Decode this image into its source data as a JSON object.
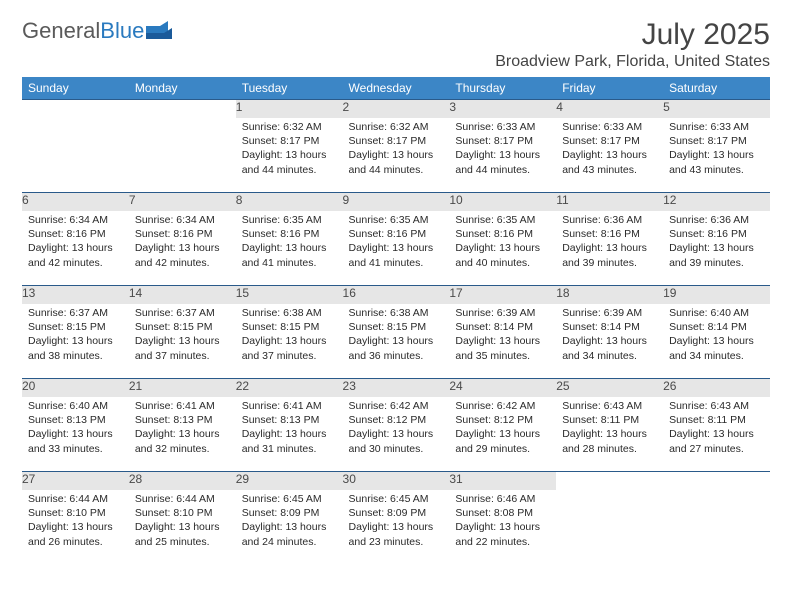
{
  "logo": {
    "text_gray": "General",
    "text_blue": "Blue"
  },
  "title": "July 2025",
  "location": "Broadview Park, Florida, United States",
  "columns": [
    "Sunday",
    "Monday",
    "Tuesday",
    "Wednesday",
    "Thursday",
    "Friday",
    "Saturday"
  ],
  "colors": {
    "header_bg": "#3c86c6",
    "header_text": "#ffffff",
    "daynum_bg": "#e6e6e6",
    "border_top": "#2a5a8a",
    "title_color": "#444444",
    "logo_gray": "#5a5a5a",
    "logo_blue": "#2a7abf"
  },
  "weeks": [
    [
      null,
      null,
      {
        "n": "1",
        "sr": "6:32 AM",
        "ss": "8:17 PM",
        "dl": "13 hours and 44 minutes."
      },
      {
        "n": "2",
        "sr": "6:32 AM",
        "ss": "8:17 PM",
        "dl": "13 hours and 44 minutes."
      },
      {
        "n": "3",
        "sr": "6:33 AM",
        "ss": "8:17 PM",
        "dl": "13 hours and 44 minutes."
      },
      {
        "n": "4",
        "sr": "6:33 AM",
        "ss": "8:17 PM",
        "dl": "13 hours and 43 minutes."
      },
      {
        "n": "5",
        "sr": "6:33 AM",
        "ss": "8:17 PM",
        "dl": "13 hours and 43 minutes."
      }
    ],
    [
      {
        "n": "6",
        "sr": "6:34 AM",
        "ss": "8:16 PM",
        "dl": "13 hours and 42 minutes."
      },
      {
        "n": "7",
        "sr": "6:34 AM",
        "ss": "8:16 PM",
        "dl": "13 hours and 42 minutes."
      },
      {
        "n": "8",
        "sr": "6:35 AM",
        "ss": "8:16 PM",
        "dl": "13 hours and 41 minutes."
      },
      {
        "n": "9",
        "sr": "6:35 AM",
        "ss": "8:16 PM",
        "dl": "13 hours and 41 minutes."
      },
      {
        "n": "10",
        "sr": "6:35 AM",
        "ss": "8:16 PM",
        "dl": "13 hours and 40 minutes."
      },
      {
        "n": "11",
        "sr": "6:36 AM",
        "ss": "8:16 PM",
        "dl": "13 hours and 39 minutes."
      },
      {
        "n": "12",
        "sr": "6:36 AM",
        "ss": "8:16 PM",
        "dl": "13 hours and 39 minutes."
      }
    ],
    [
      {
        "n": "13",
        "sr": "6:37 AM",
        "ss": "8:15 PM",
        "dl": "13 hours and 38 minutes."
      },
      {
        "n": "14",
        "sr": "6:37 AM",
        "ss": "8:15 PM",
        "dl": "13 hours and 37 minutes."
      },
      {
        "n": "15",
        "sr": "6:38 AM",
        "ss": "8:15 PM",
        "dl": "13 hours and 37 minutes."
      },
      {
        "n": "16",
        "sr": "6:38 AM",
        "ss": "8:15 PM",
        "dl": "13 hours and 36 minutes."
      },
      {
        "n": "17",
        "sr": "6:39 AM",
        "ss": "8:14 PM",
        "dl": "13 hours and 35 minutes."
      },
      {
        "n": "18",
        "sr": "6:39 AM",
        "ss": "8:14 PM",
        "dl": "13 hours and 34 minutes."
      },
      {
        "n": "19",
        "sr": "6:40 AM",
        "ss": "8:14 PM",
        "dl": "13 hours and 34 minutes."
      }
    ],
    [
      {
        "n": "20",
        "sr": "6:40 AM",
        "ss": "8:13 PM",
        "dl": "13 hours and 33 minutes."
      },
      {
        "n": "21",
        "sr": "6:41 AM",
        "ss": "8:13 PM",
        "dl": "13 hours and 32 minutes."
      },
      {
        "n": "22",
        "sr": "6:41 AM",
        "ss": "8:13 PM",
        "dl": "13 hours and 31 minutes."
      },
      {
        "n": "23",
        "sr": "6:42 AM",
        "ss": "8:12 PM",
        "dl": "13 hours and 30 minutes."
      },
      {
        "n": "24",
        "sr": "6:42 AM",
        "ss": "8:12 PM",
        "dl": "13 hours and 29 minutes."
      },
      {
        "n": "25",
        "sr": "6:43 AM",
        "ss": "8:11 PM",
        "dl": "13 hours and 28 minutes."
      },
      {
        "n": "26",
        "sr": "6:43 AM",
        "ss": "8:11 PM",
        "dl": "13 hours and 27 minutes."
      }
    ],
    [
      {
        "n": "27",
        "sr": "6:44 AM",
        "ss": "8:10 PM",
        "dl": "13 hours and 26 minutes."
      },
      {
        "n": "28",
        "sr": "6:44 AM",
        "ss": "8:10 PM",
        "dl": "13 hours and 25 minutes."
      },
      {
        "n": "29",
        "sr": "6:45 AM",
        "ss": "8:09 PM",
        "dl": "13 hours and 24 minutes."
      },
      {
        "n": "30",
        "sr": "6:45 AM",
        "ss": "8:09 PM",
        "dl": "13 hours and 23 minutes."
      },
      {
        "n": "31",
        "sr": "6:46 AM",
        "ss": "8:08 PM",
        "dl": "13 hours and 22 minutes."
      },
      null,
      null
    ]
  ],
  "labels": {
    "sunrise": "Sunrise:",
    "sunset": "Sunset:",
    "daylight": "Daylight:"
  }
}
